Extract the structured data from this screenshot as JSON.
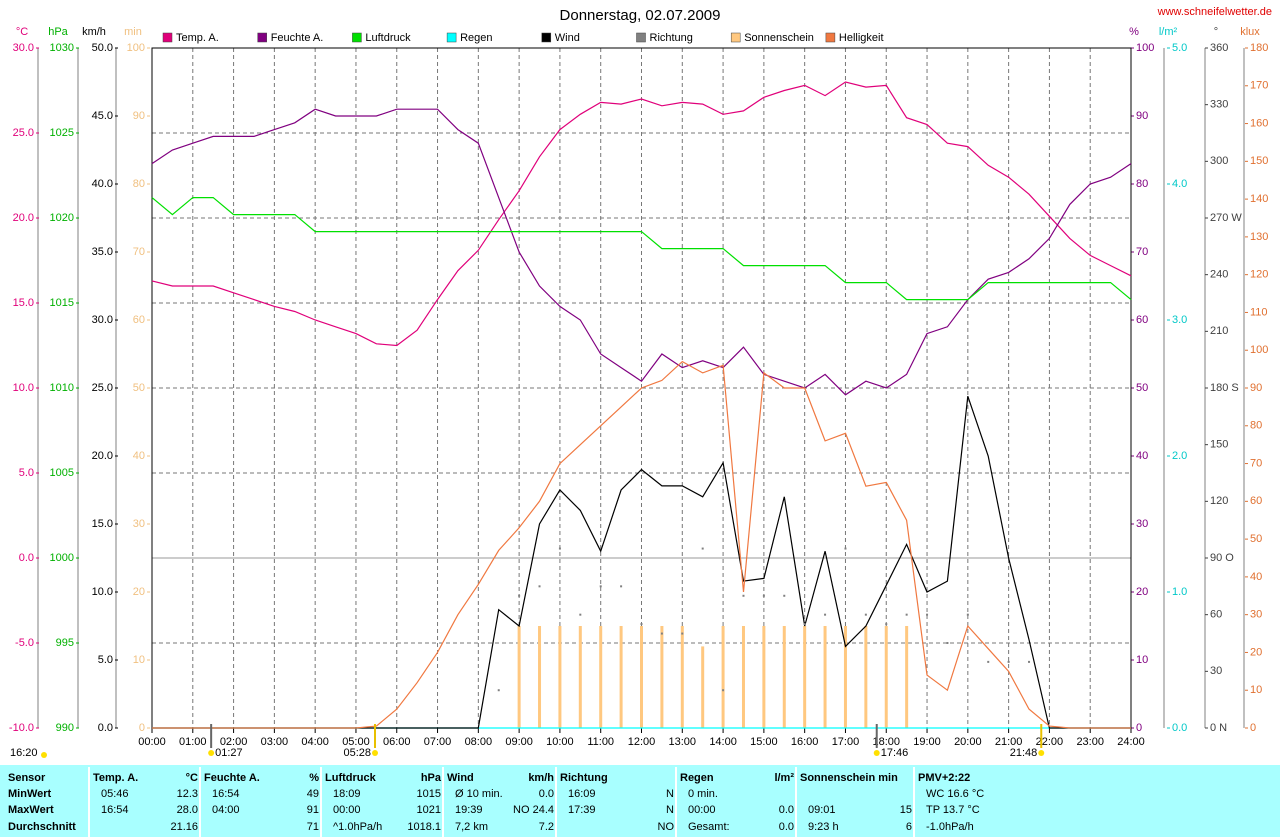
{
  "chart_data": {
    "type": "line",
    "title": "Donnerstag, 02.07.2009",
    "source": "www.schneifelwetter.de",
    "x": [
      0,
      0.5,
      1,
      1.5,
      2,
      2.5,
      3,
      3.5,
      4,
      4.5,
      5,
      5.5,
      6,
      6.5,
      7,
      7.5,
      8,
      8.5,
      9,
      9.5,
      10,
      10.5,
      11,
      11.5,
      12,
      12.5,
      13,
      13.5,
      14,
      14.5,
      15,
      15.5,
      16,
      16.5,
      17,
      17.5,
      18,
      18.5,
      19,
      19.5,
      20,
      20.5,
      21,
      21.5,
      22,
      22.5,
      23,
      23.5,
      24
    ],
    "xlim": [
      0,
      24
    ],
    "xticks": [
      {
        "value": 0,
        "label": "00:00"
      },
      {
        "value": 1,
        "label": "01:00"
      },
      {
        "value": 2,
        "label": "02:00"
      },
      {
        "value": 3,
        "label": "03:00"
      },
      {
        "value": 4,
        "label": "04:00"
      },
      {
        "value": 5,
        "label": "05:00"
      },
      {
        "value": 6,
        "label": "06:00"
      },
      {
        "value": 7,
        "label": "07:00"
      },
      {
        "value": 8,
        "label": "08:00"
      },
      {
        "value": 9,
        "label": "09:00"
      },
      {
        "value": 10,
        "label": "10:00"
      },
      {
        "value": 11,
        "label": "11:00"
      },
      {
        "value": 12,
        "label": "12:00"
      },
      {
        "value": 13,
        "label": "13:00"
      },
      {
        "value": 14,
        "label": "14:00"
      },
      {
        "value": 15,
        "label": "15:00"
      },
      {
        "value": 16,
        "label": "16:00"
      },
      {
        "value": 17,
        "label": "17:00"
      },
      {
        "value": 18,
        "label": "18:00"
      },
      {
        "value": 19,
        "label": "19:00"
      },
      {
        "value": 20,
        "label": "20:00"
      },
      {
        "value": 21,
        "label": "21:00"
      },
      {
        "value": 22,
        "label": "22:00"
      },
      {
        "value": 23,
        "label": "23:00"
      },
      {
        "value": 24,
        "label": "24:00"
      }
    ],
    "grid": true,
    "axes": [
      {
        "label": "°C",
        "lim": [
          -10,
          30
        ],
        "color": "#e0007a",
        "ticks": [
          {
            "value": -10,
            "label": "-10.0"
          },
          {
            "value": -5,
            "label": "-5.0"
          },
          {
            "value": 0,
            "label": "0.0"
          },
          {
            "value": 5,
            "label": "5.0"
          },
          {
            "value": 10,
            "label": "10.0"
          },
          {
            "value": 15,
            "label": "15.0"
          },
          {
            "value": 20,
            "label": "20.0"
          },
          {
            "value": 25,
            "label": "25.0"
          },
          {
            "value": 30,
            "label": "30.0"
          }
        ]
      },
      {
        "label": "hPa",
        "lim": [
          990,
          1030
        ],
        "color": "#00b000",
        "ticks": [
          990,
          995,
          1000,
          1005,
          1010,
          1015,
          1020,
          1025,
          1030
        ]
      },
      {
        "label": "km/h",
        "lim": [
          0,
          50
        ],
        "color": "#000000",
        "ticks": [
          {
            "value": 0,
            "label": "0.0"
          },
          {
            "value": 5,
            "label": "5.0"
          },
          {
            "value": 10,
            "label": "10.0"
          },
          {
            "value": 15,
            "label": "15.0"
          },
          {
            "value": 20,
            "label": "20.0"
          },
          {
            "value": 25,
            "label": "25.0"
          },
          {
            "value": 30,
            "label": "30.0"
          },
          {
            "value": 35,
            "label": "35.0"
          },
          {
            "value": 40,
            "label": "40.0"
          },
          {
            "value": 45,
            "label": "45.0"
          },
          {
            "value": 50,
            "label": "50.0"
          }
        ]
      },
      {
        "label": "min",
        "lim": [
          0,
          100
        ],
        "color": "#f0c080",
        "ticks": [
          0,
          10,
          20,
          30,
          40,
          50,
          60,
          70,
          80,
          90,
          100
        ]
      },
      {
        "label": "%",
        "lim": [
          0,
          100
        ],
        "color": "#800080",
        "ticks": [
          0,
          10,
          20,
          30,
          40,
          50,
          60,
          70,
          80,
          90,
          100
        ]
      },
      {
        "label": "l/m²",
        "lim": [
          0,
          5
        ],
        "color": "#00c8c8",
        "ticks": [
          {
            "value": 0,
            "label": "0.0"
          },
          {
            "value": 1,
            "label": "1.0"
          },
          {
            "value": 2,
            "label": "2.0"
          },
          {
            "value": 3,
            "label": "3.0"
          },
          {
            "value": 4,
            "label": "4.0"
          },
          {
            "value": 5,
            "label": "5.0"
          }
        ]
      },
      {
        "label": "°",
        "lim": [
          0,
          360
        ],
        "color": "#404040",
        "ticks": [
          {
            "value": 0,
            "label": "0 N"
          },
          30,
          60,
          {
            "value": 90,
            "label": "90 O"
          },
          120,
          150,
          {
            "value": 180,
            "label": "180 S"
          },
          210,
          240,
          {
            "value": 270,
            "label": "270 W"
          },
          300,
          330,
          360
        ]
      },
      {
        "label": "klux",
        "lim": [
          0,
          180
        ],
        "color": "#e07030",
        "ticks": [
          0,
          10,
          20,
          30,
          40,
          50,
          60,
          70,
          80,
          90,
          100,
          110,
          120,
          130,
          140,
          150,
          160,
          170,
          180
        ]
      }
    ],
    "series": [
      {
        "name": "Temp. A.",
        "color": "#e0007a",
        "axis": "°C",
        "type": "line",
        "values": [
          16.3,
          16.0,
          16.0,
          16.0,
          15.6,
          15.2,
          14.8,
          14.5,
          14.0,
          13.6,
          13.2,
          12.6,
          12.5,
          13.4,
          15.2,
          16.9,
          18.1,
          19.9,
          21.6,
          23.6,
          25.2,
          26.1,
          26.8,
          26.7,
          27.0,
          26.6,
          26.8,
          26.7,
          26.1,
          26.3,
          27.1,
          27.5,
          27.8,
          27.2,
          28.0,
          27.7,
          27.8,
          25.9,
          25.5,
          24.4,
          24.2,
          23.1,
          22.4,
          21.4,
          20.1,
          18.8,
          17.8,
          17.2,
          16.6
        ]
      },
      {
        "name": "Feuchte A.",
        "color": "#800080",
        "axis": "%",
        "type": "line",
        "values": [
          83,
          85,
          86,
          87,
          87,
          87,
          88,
          89,
          91,
          90,
          90,
          90,
          91,
          91,
          91,
          88,
          86,
          78,
          70,
          65,
          62,
          60,
          55,
          53,
          51,
          55,
          53,
          54,
          53,
          56,
          52,
          51,
          50,
          52,
          49,
          51,
          50,
          52,
          58,
          59,
          63,
          66,
          67,
          69,
          72,
          77,
          80,
          81,
          83
        ]
      },
      {
        "name": "Luftdruck",
        "color": "#00e000",
        "axis": "hPa",
        "type": "line",
        "values": [
          1021.2,
          1020.2,
          1021.2,
          1021.2,
          1020.2,
          1020.2,
          1020.2,
          1020.2,
          1019.2,
          1019.2,
          1019.2,
          1019.2,
          1019.2,
          1019.2,
          1019.2,
          1019.2,
          1019.2,
          1019.2,
          1019.2,
          1019.2,
          1019.2,
          1019.2,
          1019.2,
          1019.2,
          1019.2,
          1018.2,
          1018.2,
          1018.2,
          1018.2,
          1017.2,
          1017.2,
          1017.2,
          1017.2,
          1017.2,
          1016.2,
          1016.2,
          1016.2,
          1015.2,
          1015.2,
          1015.2,
          1015.2,
          1016.2,
          1016.2,
          1016.2,
          1016.2,
          1016.2,
          1016.2,
          1016.2,
          1015.2
        ]
      },
      {
        "name": "Regen",
        "color": "#00ffff",
        "axis": "l/m²",
        "type": "line",
        "values": [
          0,
          0,
          0,
          0,
          0,
          0,
          0,
          0,
          0,
          0,
          0,
          0,
          0,
          0,
          0,
          0,
          0,
          0,
          0,
          0,
          0,
          0,
          0,
          0,
          0,
          0,
          0,
          0,
          0,
          0,
          0,
          0,
          0,
          0,
          0,
          0,
          0,
          0,
          0,
          0,
          0,
          0,
          0,
          0,
          0,
          0,
          0,
          0,
          0
        ]
      },
      {
        "name": "Wind",
        "color": "#000000",
        "axis": "km/h",
        "type": "line",
        "values": [
          0,
          0,
          0,
          0,
          0,
          0,
          0,
          0,
          0,
          0,
          0,
          0,
          0,
          0,
          0,
          0,
          0,
          8.7,
          7.5,
          15,
          17.5,
          16,
          13,
          17.5,
          19,
          17.8,
          17.8,
          17,
          19.5,
          10.8,
          11,
          17,
          7.5,
          13,
          6,
          7.5,
          10.5,
          13.5,
          10,
          10.8,
          24.4,
          20,
          12.5,
          6.5,
          0,
          0,
          0,
          0,
          0
        ]
      },
      {
        "name": "Richtung",
        "color": "#808080",
        "axis": "°",
        "type": "dots",
        "values": [
          null,
          null,
          null,
          null,
          null,
          null,
          null,
          null,
          null,
          null,
          null,
          null,
          null,
          null,
          null,
          null,
          null,
          20,
          70,
          75,
          95,
          60,
          75,
          75,
          55,
          50,
          50,
          95,
          20,
          70,
          70,
          70,
          55,
          60,
          95,
          60,
          55,
          60,
          60,
          45,
          60,
          35,
          35,
          35,
          null,
          null,
          null,
          null,
          null
        ]
      },
      {
        "name": "Sonnenschein",
        "color": "#ffc880",
        "axis": "min",
        "type": "bar",
        "values": [
          0,
          0,
          0,
          0,
          0,
          0,
          0,
          0,
          0,
          0,
          0,
          0,
          0,
          0,
          0,
          0,
          0,
          0,
          15,
          15,
          15,
          15,
          15,
          15,
          15,
          15,
          15,
          12,
          15,
          15,
          15,
          15,
          15,
          15,
          15,
          15,
          15,
          15,
          0,
          0,
          0,
          0,
          0,
          0,
          0,
          0,
          0,
          0,
          0
        ]
      },
      {
        "name": "Helligkeit",
        "color": "#f07840",
        "axis": "klux",
        "type": "line",
        "values": [
          0,
          0,
          0,
          0,
          0,
          0,
          0,
          0,
          0,
          0,
          0,
          0.5,
          5,
          12,
          20,
          30,
          38,
          47,
          53,
          60,
          70,
          75,
          80,
          85,
          90,
          92,
          97,
          94,
          96,
          36,
          94,
          90,
          90,
          76,
          78,
          64,
          65,
          55,
          14,
          10,
          27,
          21,
          15,
          5,
          0.5,
          0,
          0,
          0,
          0
        ]
      }
    ],
    "start_marker": "16:20",
    "markers": [
      "01:27",
      "05:28",
      "17:46",
      "21:48"
    ]
  },
  "table": {
    "row_header": "Sensor",
    "row_labels": [
      "MinWert",
      "MaxWert",
      "Durchschnitt"
    ],
    "groups": [
      {
        "name": "Temp. A.",
        "unit": "°C",
        "cells": [
          {
            "time": "05:46",
            "value": "12.3"
          },
          {
            "time": "16:54",
            "value": "28.0"
          },
          {
            "value": "21.16"
          }
        ]
      },
      {
        "name": "Feuchte A.",
        "unit": "%",
        "cells": [
          {
            "time": "16:54",
            "value": "49"
          },
          {
            "time": "04:00",
            "value": "91"
          },
          {
            "value": "71"
          }
        ]
      },
      {
        "name": "Luftdruck",
        "unit": "hPa",
        "cells": [
          {
            "time": "18:09",
            "value": "1015"
          },
          {
            "time": "00:00",
            "value": "1021"
          },
          {
            "time": "^1.0hPa/h",
            "value": "1018.1"
          }
        ]
      },
      {
        "name": "Wind",
        "unit": "km/h",
        "cells": [
          {
            "time": "Ø 10 min.",
            "value": "0.0"
          },
          {
            "time": "19:39",
            "value": "NO 24.4"
          },
          {
            "time": "7,2 km",
            "value": "7.2"
          }
        ]
      },
      {
        "name": "Richtung",
        "cells": [
          {
            "time": "16:09",
            "value": "N"
          },
          {
            "time": "17:39",
            "value": "N"
          },
          {
            "value": "NO"
          }
        ]
      },
      {
        "name": "Regen",
        "unit": "l/m²",
        "cells": [
          {
            "time": "0 min."
          },
          {
            "time": "00:00",
            "value": "0.0"
          },
          {
            "time": "Gesamt:",
            "value": "0.0"
          }
        ]
      },
      {
        "name": "Sonnenschein min",
        "cells": [
          {},
          {
            "time": "09:01",
            "value": "15"
          },
          {
            "time": "9:23 h",
            "value": "6"
          }
        ]
      },
      {
        "name": "PMV+2:22",
        "cells": [
          {
            "time": "WC 16.6 °C"
          },
          {
            "time": "TP 13.7 °C"
          },
          {
            "time": "-1.0hPa/h"
          }
        ]
      }
    ]
  }
}
